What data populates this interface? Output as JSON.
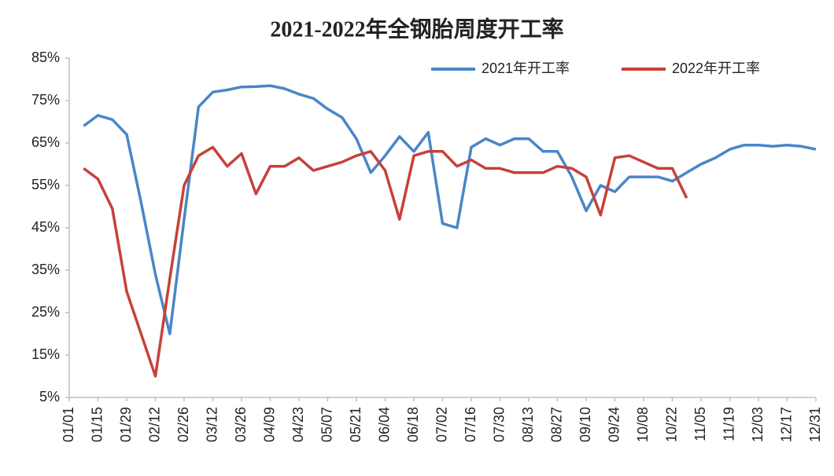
{
  "chart_data": {
    "type": "line",
    "title": "2021-2022年全钢胎周度开工率",
    "categories": [
      "01/01",
      null,
      "01/15",
      null,
      "01/29",
      null,
      "02/12",
      null,
      "02/26",
      null,
      "03/12",
      null,
      "03/26",
      null,
      "04/09",
      null,
      "04/23",
      null,
      "05/07",
      null,
      "05/21",
      null,
      "06/04",
      null,
      "06/18",
      null,
      "07/02",
      null,
      "07/16",
      null,
      "07/30",
      null,
      "08/13",
      null,
      "08/27",
      null,
      "09/10",
      null,
      "09/24",
      null,
      "10/08",
      null,
      "10/22",
      null,
      "11/05",
      null,
      "11/19",
      null,
      "12/03",
      null,
      "12/17",
      null,
      "12/31"
    ],
    "series": [
      {
        "name": "2021年开工率",
        "color": "#4a86c8",
        "values": [
          null,
          69,
          71.5,
          70.5,
          67,
          51,
          34,
          20,
          47,
          73.5,
          77,
          77.5,
          78.2,
          78.3,
          78.5,
          77.8,
          76.5,
          75.5,
          73,
          71,
          66,
          58,
          62,
          66.5,
          63,
          67.5,
          46,
          45,
          64,
          66,
          64.5,
          66,
          66,
          63,
          63,
          57,
          49,
          55,
          53.5,
          57,
          57,
          57,
          56,
          58,
          60,
          61.5,
          63.5,
          64.5,
          64.5,
          64.2,
          64.5,
          64.2,
          63.5
        ]
      },
      {
        "name": "2022年开工率",
        "color": "#c6413a",
        "values": [
          null,
          59,
          56.5,
          49.5,
          30,
          20,
          10,
          33,
          55,
          62,
          64,
          59.5,
          62.5,
          53,
          59.5,
          59.5,
          61.5,
          58.5,
          59.5,
          60.5,
          62,
          63,
          58.5,
          47,
          62,
          63,
          63,
          59.5,
          61,
          59,
          59,
          58,
          58,
          58,
          59.5,
          59,
          57,
          48,
          61.5,
          62,
          60.5,
          59,
          59,
          52,
          null,
          null,
          null,
          null,
          null,
          null,
          null,
          null,
          null
        ]
      }
    ],
    "ylim": [
      5,
      85
    ],
    "yticks": [
      {
        "value": 5,
        "label": "5%"
      },
      {
        "value": 15,
        "label": "15%"
      },
      {
        "value": 25,
        "label": "25%"
      },
      {
        "value": 35,
        "label": "35%"
      },
      {
        "value": 45,
        "label": "45%"
      },
      {
        "value": 55,
        "label": "55%"
      },
      {
        "value": 65,
        "label": "65%"
      },
      {
        "value": 75,
        "label": "75%"
      },
      {
        "value": 85,
        "label": "85%"
      }
    ],
    "legend": "top-right",
    "grid": false
  }
}
